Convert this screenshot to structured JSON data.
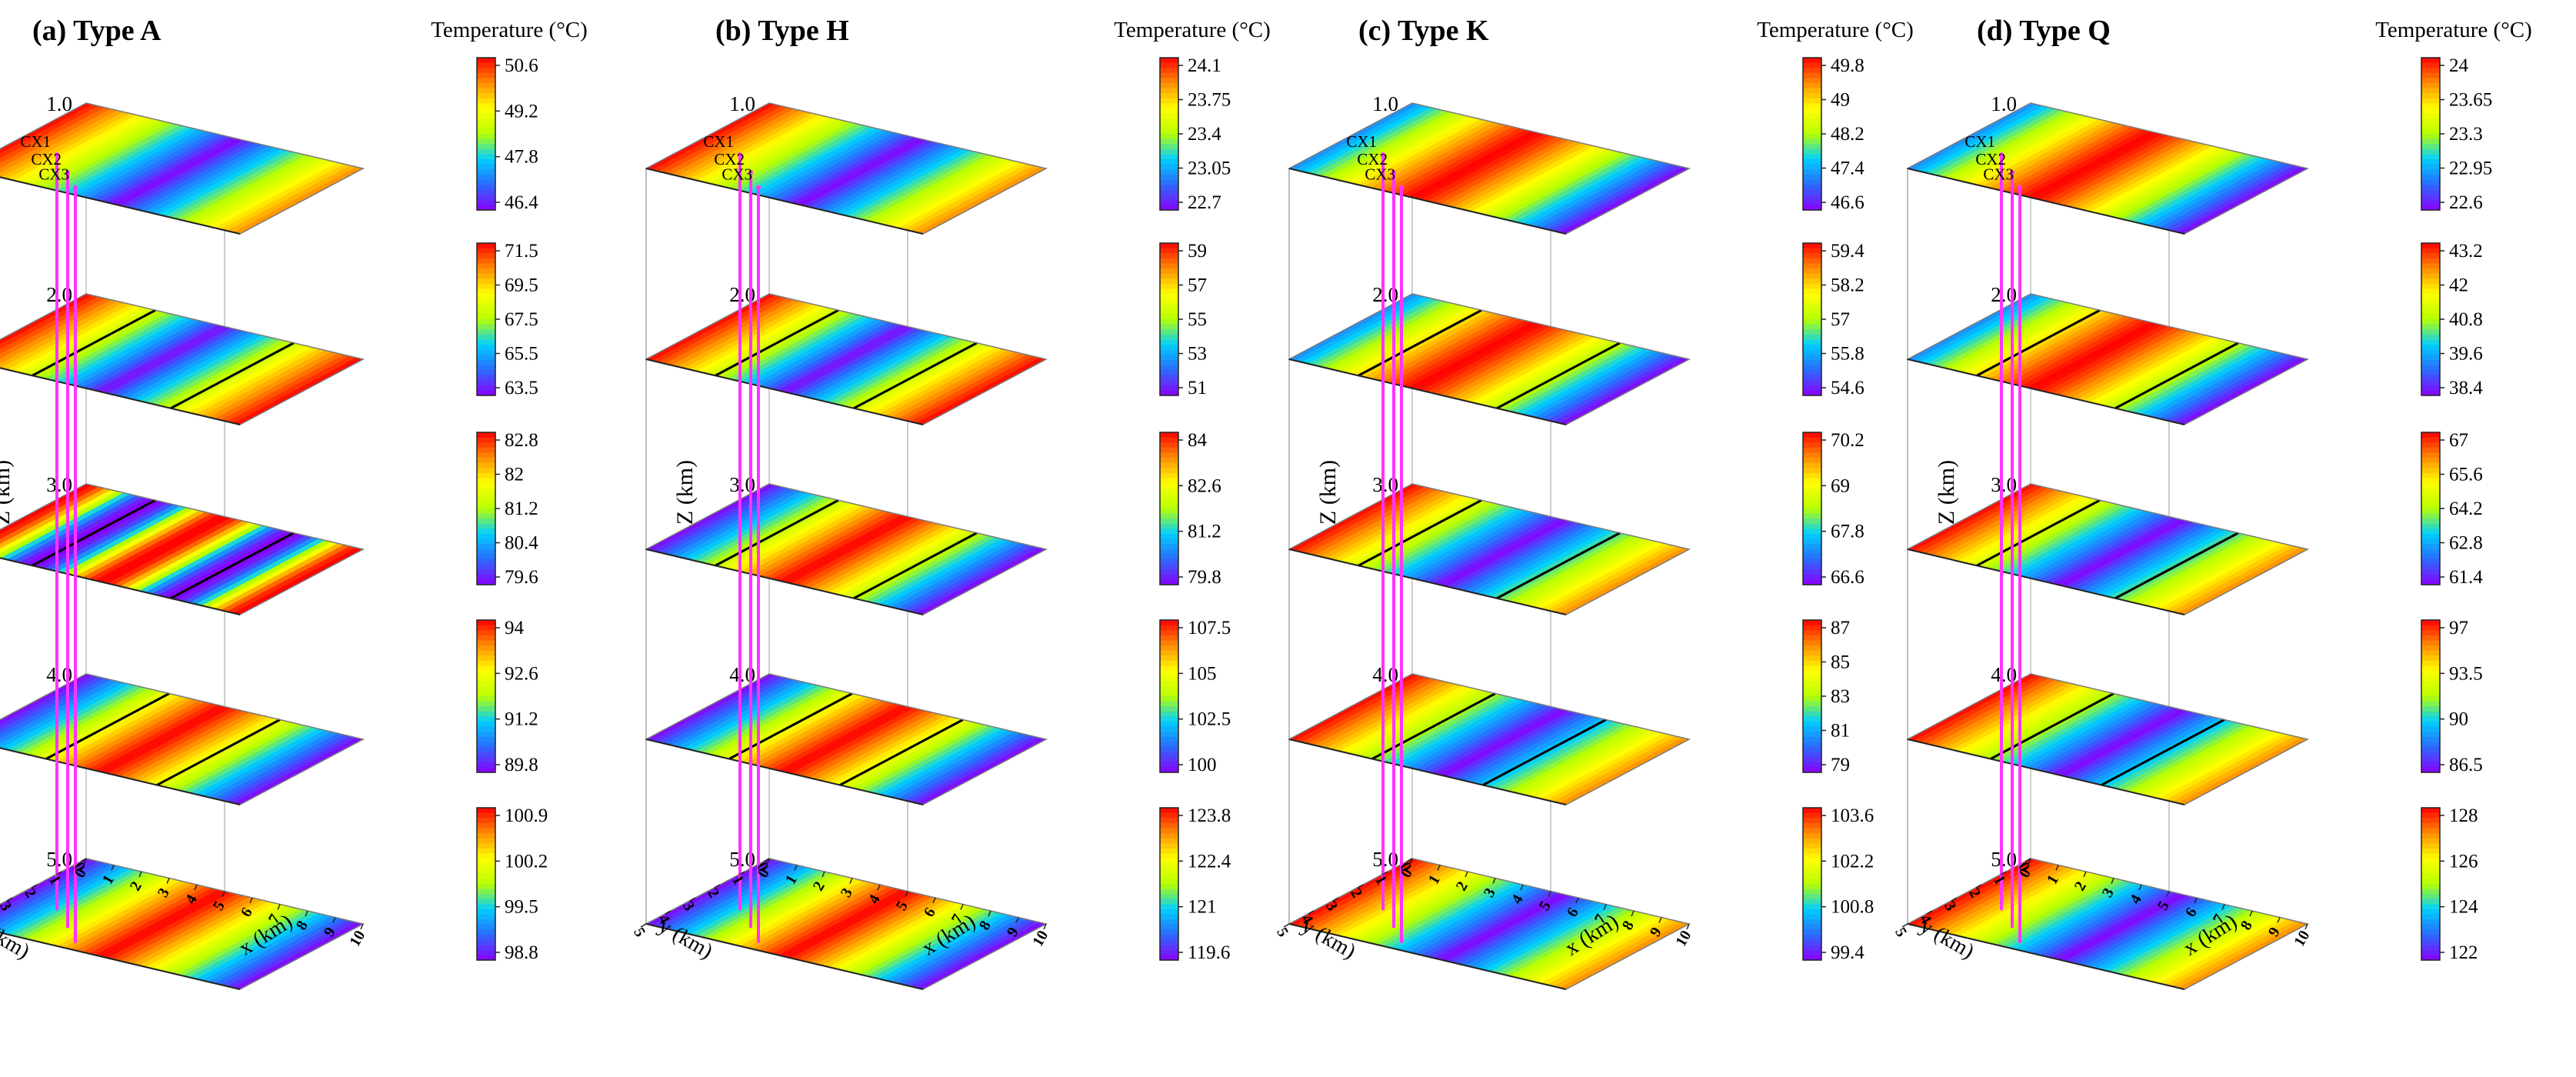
{
  "colors": {
    "colormap": [
      "#8a00ff",
      "#2a6bff",
      "#00d0ff",
      "#b8ff00",
      "#ffff00",
      "#ff8c00",
      "#ff0000"
    ],
    "well": "#ff33ff",
    "isoline": "#000000",
    "frame": "#222222"
  },
  "chart_data": [
    {
      "type": "heatmap",
      "panel": "a",
      "title": "(a) Type A",
      "colorbar_title": "Temperature (°C)",
      "zlabel": "Z (km)",
      "xlabel": "x (km)",
      "ylabel": "y (km)",
      "x_ticks": [
        "0",
        "1",
        "2",
        "3",
        "4",
        "5",
        "6",
        "7",
        "8",
        "9",
        "10"
      ],
      "y_ticks": [
        "0",
        "1",
        "2",
        "3",
        "4",
        "5"
      ],
      "z_ticks": [
        "1.0",
        "2.0",
        "3.0",
        "4.0",
        "5.0"
      ],
      "wells": [
        "CX1",
        "CX2",
        "CX3"
      ],
      "slices": [
        {
          "depth_km": 1.0,
          "range": [
            46.4,
            50.6
          ],
          "ticks": [
            "50.6",
            "49.2",
            "47.8",
            "46.4"
          ],
          "pattern": "vl",
          "isolines": []
        },
        {
          "depth_km": 2.0,
          "range": [
            63.5,
            71.5
          ],
          "ticks": [
            "71.5",
            "69.5",
            "67.5",
            "65.5",
            "63.5"
          ],
          "pattern": "v",
          "isolines": [
            0.25,
            0.75
          ]
        },
        {
          "depth_km": 3.0,
          "range": [
            79.6,
            82.8
          ],
          "ticks": [
            "82.8",
            "82",
            "81.2",
            "80.4",
            "79.6"
          ],
          "pattern": "m",
          "isolines": [
            0.25,
            0.75
          ]
        },
        {
          "depth_km": 4.0,
          "range": [
            89.8,
            94
          ],
          "ticks": [
            "94",
            "92.6",
            "91.2",
            "89.8"
          ],
          "pattern": "h",
          "isolines": [
            0.3,
            0.7
          ]
        },
        {
          "depth_km": 5.0,
          "range": [
            98.8,
            100.9
          ],
          "ticks": [
            "100.9",
            "100.2",
            "99.5",
            "98.8"
          ],
          "pattern": "h",
          "isolines": []
        }
      ]
    },
    {
      "type": "heatmap",
      "panel": "b",
      "title": "(b) Type H",
      "colorbar_title": "Temperature (°C)",
      "zlabel": "Z (km)",
      "xlabel": "x (km)",
      "ylabel": "y (km)",
      "x_ticks": [
        "0",
        "1",
        "2",
        "3",
        "4",
        "5",
        "6",
        "7",
        "8",
        "9",
        "10"
      ],
      "y_ticks": [
        "0",
        "1",
        "2",
        "3",
        "4",
        "5"
      ],
      "z_ticks": [
        "1.0",
        "2.0",
        "3.0",
        "4.0",
        "5.0"
      ],
      "wells": [
        "CX1",
        "CX2",
        "CX3"
      ],
      "slices": [
        {
          "depth_km": 1.0,
          "range": [
            22.7,
            24.1
          ],
          "ticks": [
            "24.1",
            "23.75",
            "23.4",
            "23.05",
            "22.7"
          ],
          "pattern": "vl",
          "isolines": []
        },
        {
          "depth_km": 2.0,
          "range": [
            51,
            59
          ],
          "ticks": [
            "59",
            "57",
            "55",
            "53",
            "51"
          ],
          "pattern": "v",
          "isolines": [
            0.25,
            0.75
          ]
        },
        {
          "depth_km": 3.0,
          "range": [
            79.8,
            84
          ],
          "ticks": [
            "84",
            "82.6",
            "81.2",
            "79.8"
          ],
          "pattern": "h",
          "isolines": [
            0.25,
            0.75
          ]
        },
        {
          "depth_km": 4.0,
          "range": [
            100,
            107.5
          ],
          "ticks": [
            "107.5",
            "105",
            "102.5",
            "100"
          ],
          "pattern": "h",
          "isolines": [
            0.3,
            0.7
          ]
        },
        {
          "depth_km": 5.0,
          "range": [
            119.6,
            123.8
          ],
          "ticks": [
            "123.8",
            "122.4",
            "121",
            "119.6"
          ],
          "pattern": "h",
          "isolines": []
        }
      ]
    },
    {
      "type": "heatmap",
      "panel": "c",
      "title": "(c) Type K",
      "colorbar_title": "Temperature (°C)",
      "zlabel": "Z (km)",
      "xlabel": "x (km)",
      "ylabel": "y (km)",
      "x_ticks": [
        "0",
        "1",
        "2",
        "3",
        "4",
        "5",
        "6",
        "7",
        "8",
        "9",
        "10"
      ],
      "y_ticks": [
        "0",
        "1",
        "2",
        "3",
        "4",
        "5"
      ],
      "z_ticks": [
        "1.0",
        "2.0",
        "3.0",
        "4.0",
        "5.0"
      ],
      "wells": [
        "CX1",
        "CX2",
        "CX3"
      ],
      "slices": [
        {
          "depth_km": 1.0,
          "range": [
            46.6,
            49.8
          ],
          "ticks": [
            "49.8",
            "49",
            "48.2",
            "47.4",
            "46.6"
          ],
          "pattern": "vh",
          "isolines": []
        },
        {
          "depth_km": 2.0,
          "range": [
            54.6,
            59.4
          ],
          "ticks": [
            "59.4",
            "58.2",
            "57",
            "55.8",
            "54.6"
          ],
          "pattern": "vh",
          "isolines": [
            0.25,
            0.75
          ]
        },
        {
          "depth_km": 3.0,
          "range": [
            66.6,
            70.2
          ],
          "ticks": [
            "70.2",
            "69",
            "67.8",
            "66.6"
          ],
          "pattern": "vl",
          "isolines": [
            0.25,
            0.75
          ]
        },
        {
          "depth_km": 4.0,
          "range": [
            79,
            87
          ],
          "ticks": [
            "87",
            "85",
            "83",
            "81",
            "79"
          ],
          "pattern": "vl",
          "isolines": [
            0.3,
            0.7
          ]
        },
        {
          "depth_km": 5.0,
          "range": [
            99.4,
            103.6
          ],
          "ticks": [
            "103.6",
            "102.2",
            "100.8",
            "99.4"
          ],
          "pattern": "vl",
          "isolines": []
        }
      ]
    },
    {
      "type": "heatmap",
      "panel": "d",
      "title": "(d) Type Q",
      "colorbar_title": "Temperature (°C)",
      "zlabel": "Z (km)",
      "xlabel": "x (km)",
      "ylabel": "y (km)",
      "x_ticks": [
        "0",
        "1",
        "2",
        "3",
        "4",
        "5",
        "6",
        "7",
        "8",
        "9",
        "10"
      ],
      "y_ticks": [
        "0",
        "1",
        "2",
        "3",
        "4",
        "5"
      ],
      "z_ticks": [
        "1.0",
        "2.0",
        "3.0",
        "4.0",
        "5.0"
      ],
      "wells": [
        "CX1",
        "CX2",
        "CX3"
      ],
      "slices": [
        {
          "depth_km": 1.0,
          "range": [
            22.6,
            24
          ],
          "ticks": [
            "24",
            "23.65",
            "23.3",
            "22.95",
            "22.6"
          ],
          "pattern": "vh",
          "isolines": []
        },
        {
          "depth_km": 2.0,
          "range": [
            38.4,
            43.2
          ],
          "ticks": [
            "43.2",
            "42",
            "40.8",
            "39.6",
            "38.4"
          ],
          "pattern": "vh",
          "isolines": [
            0.25,
            0.75
          ]
        },
        {
          "depth_km": 3.0,
          "range": [
            61.4,
            67
          ],
          "ticks": [
            "67",
            "65.6",
            "64.2",
            "62.8",
            "61.4"
          ],
          "pattern": "vl",
          "isolines": [
            0.25,
            0.75
          ]
        },
        {
          "depth_km": 4.0,
          "range": [
            86.5,
            97
          ],
          "ticks": [
            "97",
            "93.5",
            "90",
            "86.5"
          ],
          "pattern": "vl",
          "isolines": [
            0.3,
            0.7
          ]
        },
        {
          "depth_km": 5.0,
          "range": [
            122,
            128
          ],
          "ticks": [
            "128",
            "126",
            "124",
            "122"
          ],
          "pattern": "vl",
          "isolines": []
        }
      ]
    }
  ]
}
